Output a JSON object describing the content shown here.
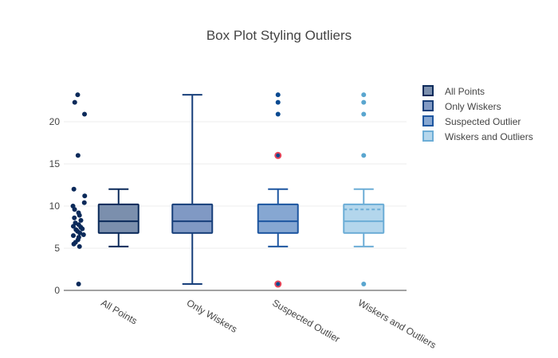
{
  "chart_data": {
    "type": "box",
    "title": "Box Plot Styling Outliers",
    "ylim": [
      0,
      25
    ],
    "yticks": [
      0,
      5,
      10,
      15,
      20
    ],
    "grid": true,
    "legend_position": "top-right",
    "series": [
      {
        "name": "All Points",
        "category": "All Points",
        "boxpoints": "all",
        "box_fill": "#7b8fad",
        "box_line": "#0b2a5a",
        "marker": "#0b2a5a",
        "stats": {
          "lowerfence": 5.2,
          "q1": 6.8,
          "median": 8.2,
          "q3": 10.2,
          "upperfence": 12.0
        },
        "points": [
          0.75,
          5.2,
          5.5,
          5.7,
          6.0,
          6.3,
          6.5,
          6.6,
          6.8,
          7.0,
          7.2,
          7.3,
          7.5,
          7.6,
          7.8,
          8.0,
          8.3,
          8.6,
          8.9,
          9.2,
          9.6,
          10.0,
          10.4,
          11.2,
          12.0,
          16.0,
          20.9,
          22.3,
          23.2
        ]
      },
      {
        "name": "Only Wiskers",
        "category": "Only Wiskers",
        "boxpoints": false,
        "box_fill": "#8099c4",
        "box_line": "#173f7a",
        "marker": "#173f7a",
        "stats": {
          "lowerfence": 0.75,
          "q1": 6.8,
          "median": 8.2,
          "q3": 10.2,
          "upperfence": 23.2
        },
        "points": []
      },
      {
        "name": "Suspected Outlier",
        "category": "Suspected Outlier",
        "boxpoints": "suspectedoutliers",
        "box_fill": "#86a7d2",
        "box_line": "#1d56a0",
        "marker": "#0a4a91",
        "suspected_color": "#e8465a",
        "stats": {
          "lowerfence": 5.2,
          "q1": 6.8,
          "median": 8.2,
          "q3": 10.2,
          "upperfence": 12.0
        },
        "points": [
          20.9,
          22.3,
          23.2
        ],
        "suspected_points": [
          0.75,
          16.0
        ]
      },
      {
        "name": "Wiskers and Outliers",
        "category": "Wiskers and Outliers",
        "boxpoints": "outliers",
        "box_fill": "#b3d6ec",
        "box_line": "#6cadd6",
        "marker": "#5aa6cf",
        "stats": {
          "lowerfence": 5.2,
          "q1": 6.8,
          "median": 8.2,
          "q3": 10.2,
          "upperfence": 12.0,
          "mean": 9.6
        },
        "points": [
          0.75,
          16.0,
          20.9,
          22.3,
          23.2
        ]
      }
    ]
  }
}
